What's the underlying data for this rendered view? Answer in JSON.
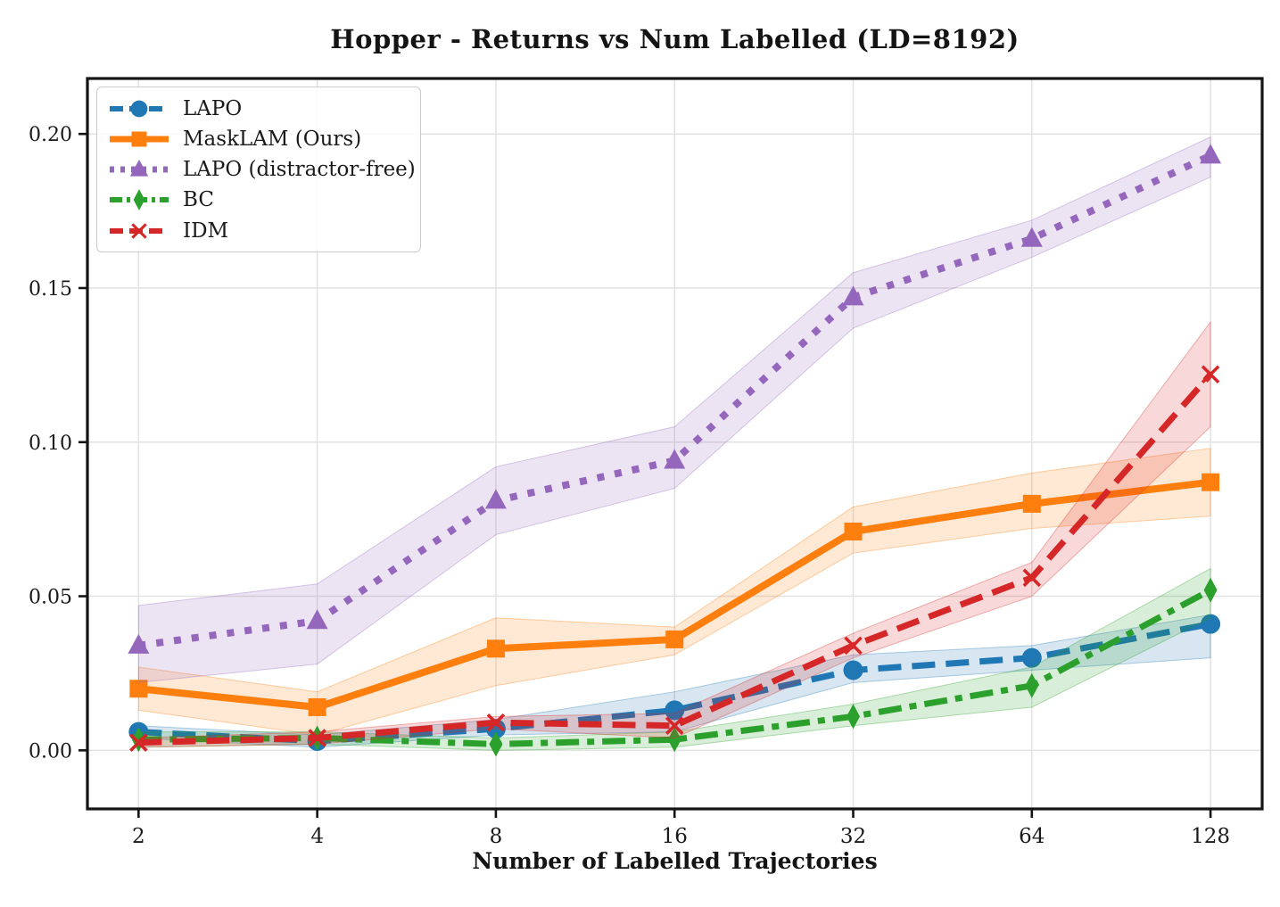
{
  "page": {
    "background": "#ffffff"
  },
  "chart_data": {
    "type": "line",
    "title": "Hopper - Returns vs Num Labelled (LD=8192)",
    "xlabel": "Number of Labelled Trajectories",
    "ylabel": "",
    "x_scale": "log2",
    "grid": true,
    "legend_position": "upper-left",
    "x": [
      2,
      4,
      8,
      16,
      32,
      64,
      128
    ],
    "x_ticks": [
      {
        "value": 2,
        "label": "2"
      },
      {
        "value": 4,
        "label": "4"
      },
      {
        "value": 8,
        "label": "8"
      },
      {
        "value": 16,
        "label": "16"
      },
      {
        "value": 32,
        "label": "32"
      },
      {
        "value": 64,
        "label": "64"
      },
      {
        "value": 128,
        "label": "128"
      }
    ],
    "y_ticks": [
      {
        "value": 0.0,
        "label": "0.00"
      },
      {
        "value": 0.05,
        "label": "0.05"
      },
      {
        "value": 0.1,
        "label": "0.10"
      },
      {
        "value": 0.15,
        "label": "0.15"
      },
      {
        "value": 0.2,
        "label": "0.20"
      }
    ],
    "xlim": [
      1.64,
      156.4
    ],
    "ylim": [
      -0.019,
      0.218
    ],
    "series": [
      {
        "name": "LAPO",
        "color": "#1f77b4",
        "line_style": "dashed",
        "marker": "circle",
        "values": [
          0.006,
          0.003,
          0.007,
          0.013,
          0.026,
          0.03,
          0.041
        ],
        "band_low": [
          0.004,
          0.001,
          0.005,
          0.006,
          0.022,
          0.026,
          0.03
        ],
        "band_high": [
          0.008,
          0.005,
          0.01,
          0.019,
          0.031,
          0.034,
          0.044
        ]
      },
      {
        "name": "MaskLAM (Ours)",
        "color": "#ff7f0e",
        "line_style": "solid",
        "marker": "square",
        "values": [
          0.02,
          0.014,
          0.033,
          0.036,
          0.071,
          0.08,
          0.087
        ],
        "band_low": [
          0.013,
          0.005,
          0.021,
          0.031,
          0.064,
          0.072,
          0.076
        ],
        "band_high": [
          0.027,
          0.019,
          0.043,
          0.04,
          0.079,
          0.09,
          0.098
        ]
      },
      {
        "name": "LAPO (distractor-free)",
        "color": "#9467bd",
        "line_style": "dotted",
        "marker": "triangle-up",
        "values": [
          0.034,
          0.042,
          0.081,
          0.094,
          0.147,
          0.166,
          0.193
        ],
        "band_low": [
          0.022,
          0.028,
          0.07,
          0.085,
          0.137,
          0.16,
          0.186
        ],
        "band_high": [
          0.047,
          0.054,
          0.092,
          0.105,
          0.155,
          0.172,
          0.199
        ]
      },
      {
        "name": "BC",
        "color": "#2ca02c",
        "line_style": "dashdot",
        "marker": "thin-diamond",
        "values": [
          0.0035,
          0.004,
          0.002,
          0.0035,
          0.011,
          0.021,
          0.052
        ],
        "band_low": [
          0.001,
          0.002,
          0.0,
          0.001,
          0.008,
          0.014,
          0.043
        ],
        "band_high": [
          0.006,
          0.006,
          0.004,
          0.006,
          0.015,
          0.027,
          0.059
        ]
      },
      {
        "name": "IDM",
        "color": "#d62728",
        "line_style": "dashed",
        "marker": "x",
        "values": [
          0.0025,
          0.004,
          0.009,
          0.008,
          0.034,
          0.056,
          0.122
        ],
        "band_low": [
          0.001,
          0.002,
          0.007,
          0.004,
          0.03,
          0.05,
          0.105
        ],
        "band_high": [
          0.004,
          0.006,
          0.011,
          0.012,
          0.038,
          0.061,
          0.139
        ]
      }
    ]
  }
}
